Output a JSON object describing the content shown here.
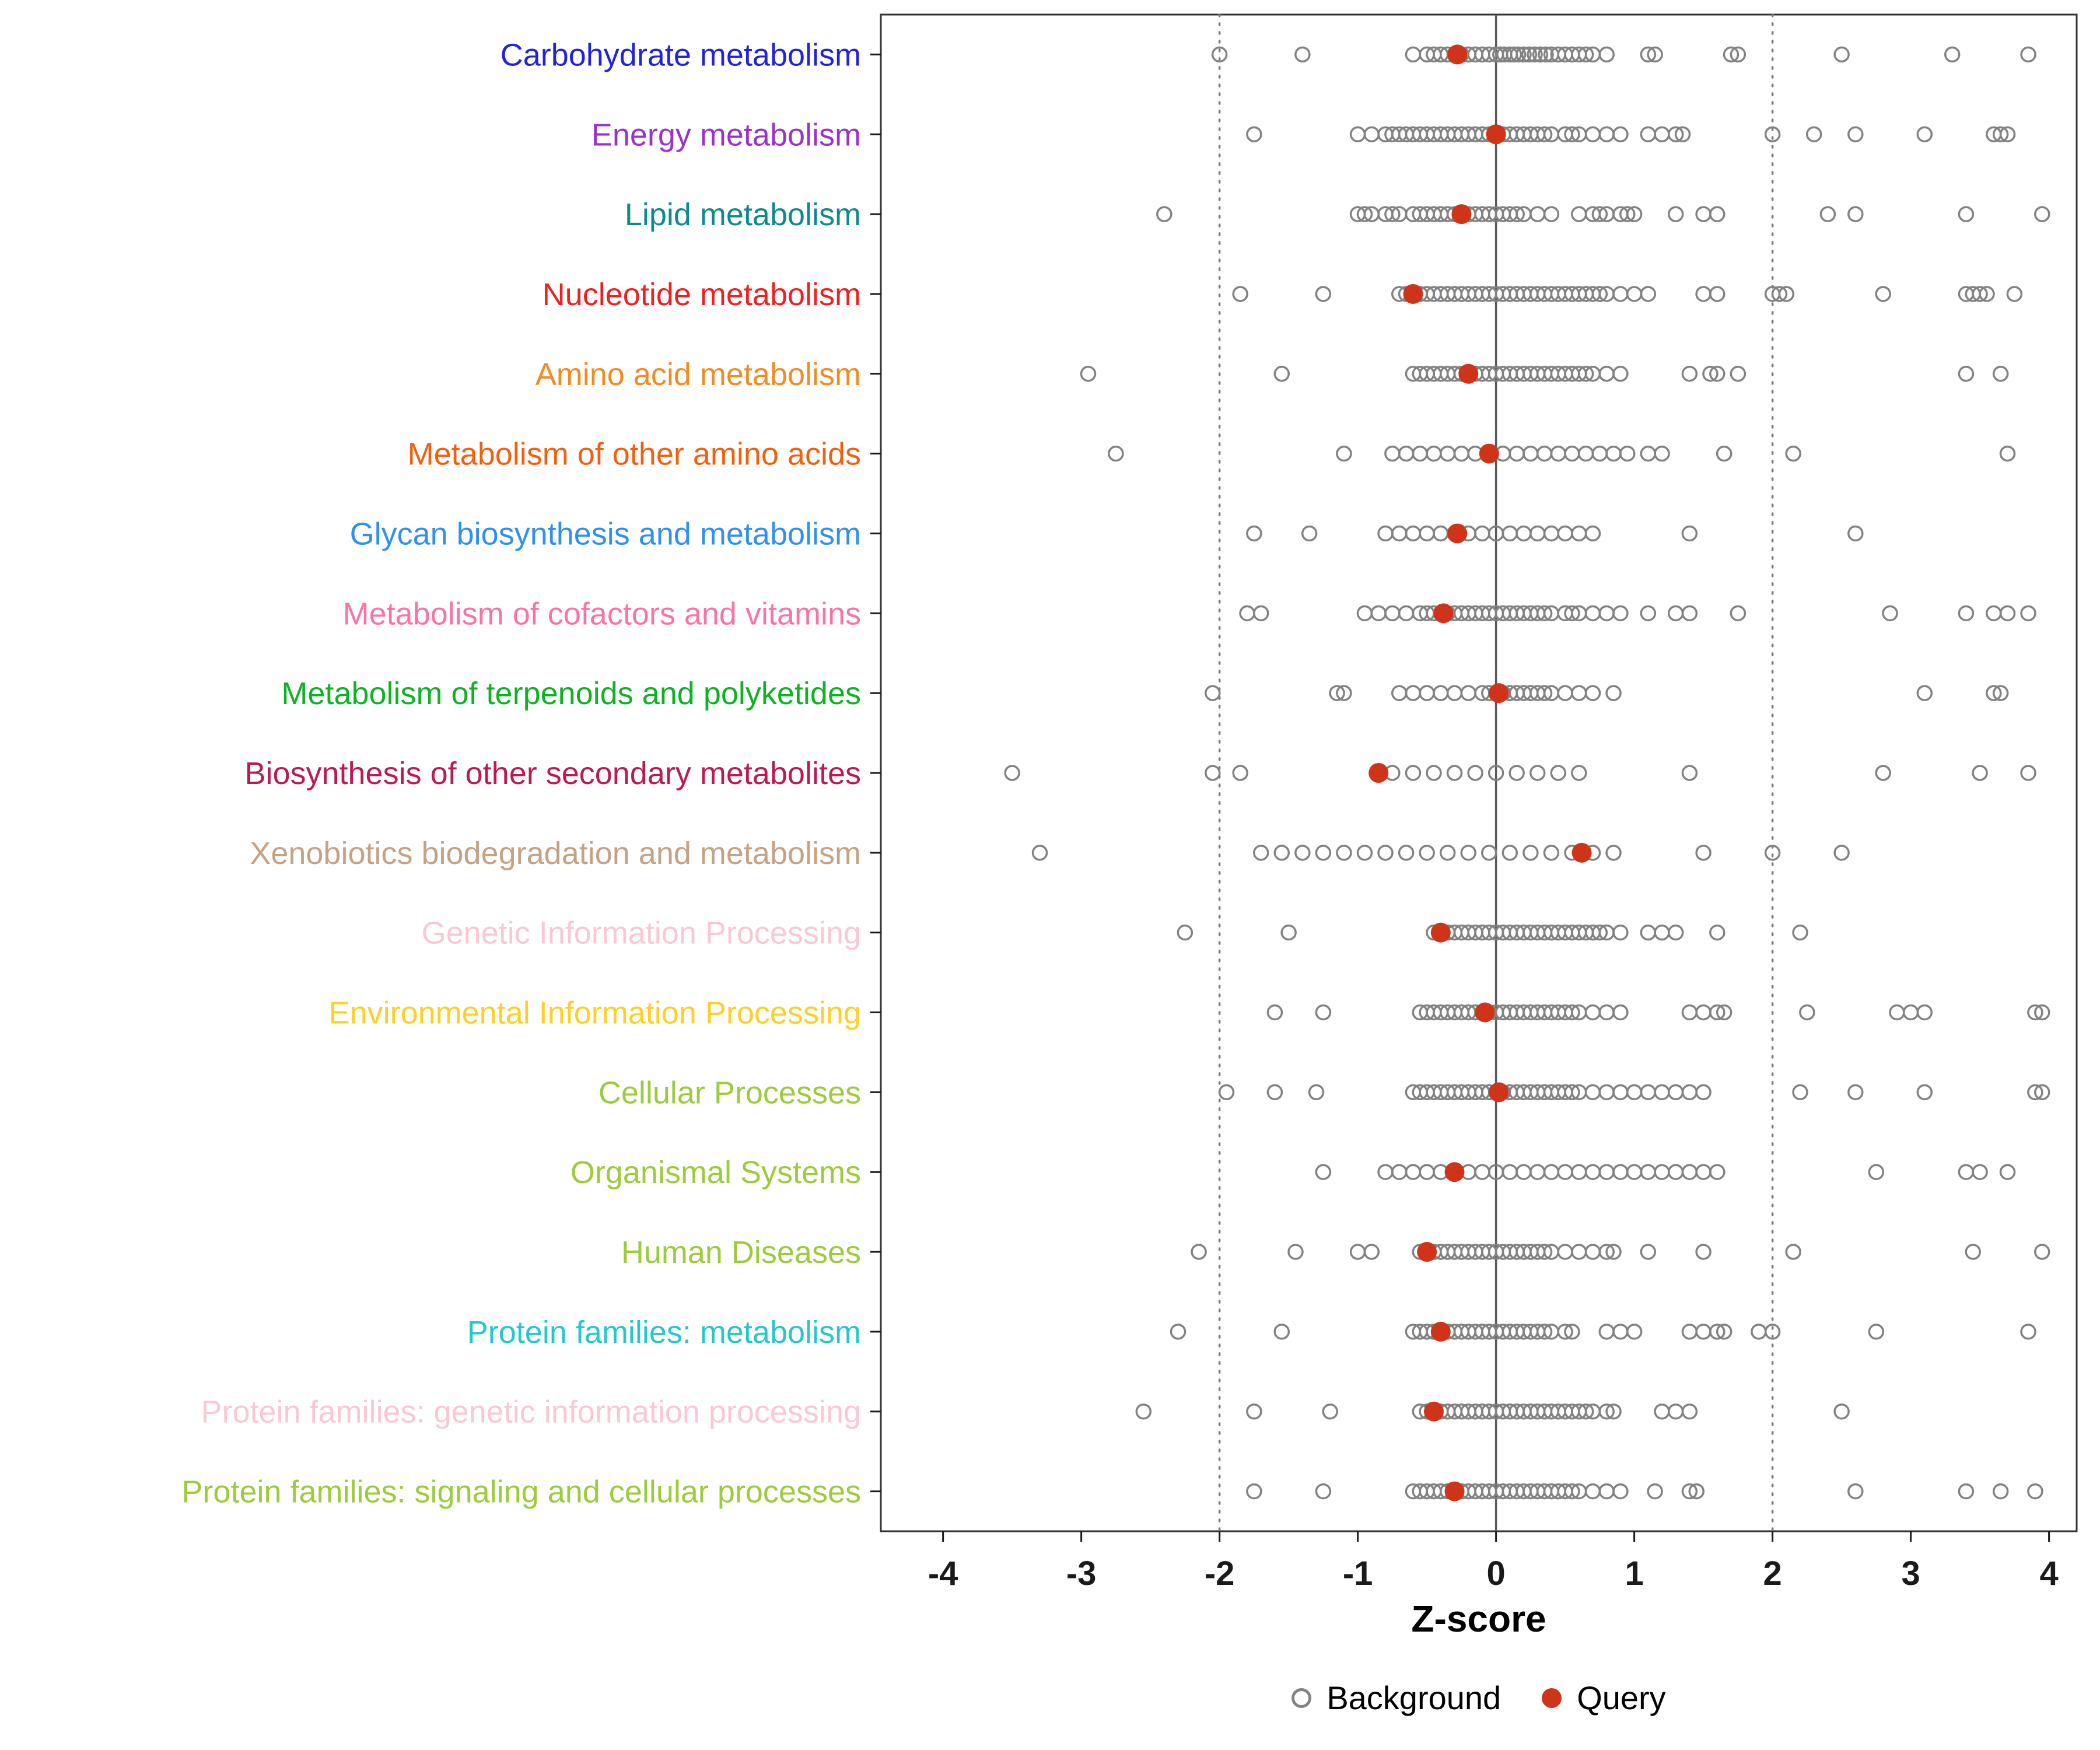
{
  "figure": {
    "background": "#FFFFFF"
  },
  "chart_data": {
    "type": "scatter",
    "title": "",
    "xlabel": "Z-score",
    "ylabel": "",
    "xlim": [
      -4.45,
      4.2
    ],
    "x_ticks": [
      -4,
      -3,
      -2,
      -1,
      0,
      1,
      2,
      3,
      4
    ],
    "grid": false,
    "panel_border_color": "#333333",
    "axis_text_color": "#1A1A1A",
    "zero_line_color": "#5A5A5A",
    "dotted_line_color": "#7A7A7A",
    "background_color": "#828282",
    "query_color": "#D03418",
    "reference_lines": {
      "solid": [
        0
      ],
      "dotted": [
        -2,
        2
      ]
    },
    "legend": {
      "position": "bottom",
      "items": [
        {
          "label": "Background",
          "marker": "open-circle",
          "color": "#828282"
        },
        {
          "label": "Query",
          "marker": "filled-circle",
          "color": "#D03418"
        }
      ]
    },
    "series": [
      {
        "category": "Carbohydrate metabolism",
        "label_color": "#2222DD",
        "query": -0.28,
        "background": [
          -2.0,
          -1.4,
          -0.6,
          -0.5,
          -0.45,
          -0.4,
          -0.35,
          -0.3,
          -0.25,
          -0.2,
          -0.15,
          -0.1,
          -0.05,
          0.0,
          0.03,
          0.06,
          0.1,
          0.13,
          0.16,
          0.2,
          0.24,
          0.28,
          0.32,
          0.36,
          0.4,
          0.45,
          0.5,
          0.55,
          0.6,
          0.65,
          0.7,
          0.8,
          1.1,
          1.15,
          1.7,
          1.75,
          2.5,
          3.3,
          3.85
        ]
      },
      {
        "category": "Energy metabolism",
        "label_color": "#9A32CD",
        "query": 0.0,
        "background": [
          -1.75,
          -1.0,
          -0.9,
          -0.8,
          -0.75,
          -0.7,
          -0.65,
          -0.6,
          -0.55,
          -0.5,
          -0.45,
          -0.4,
          -0.35,
          -0.3,
          -0.25,
          -0.2,
          -0.15,
          -0.1,
          -0.05,
          0.0,
          0.05,
          0.1,
          0.15,
          0.2,
          0.25,
          0.3,
          0.35,
          0.4,
          0.5,
          0.55,
          0.6,
          0.7,
          0.8,
          0.9,
          1.1,
          1.2,
          1.3,
          1.35,
          2.0,
          2.3,
          2.6,
          3.1,
          3.6,
          3.65,
          3.7
        ]
      },
      {
        "category": "Lipid metabolism",
        "label_color": "#0E8A8A",
        "query": -0.25,
        "background": [
          -2.4,
          -1.0,
          -0.95,
          -0.9,
          -0.8,
          -0.75,
          -0.7,
          -0.6,
          -0.55,
          -0.5,
          -0.45,
          -0.4,
          -0.35,
          -0.3,
          -0.25,
          -0.2,
          -0.15,
          -0.1,
          -0.05,
          0.0,
          0.05,
          0.1,
          0.15,
          0.2,
          0.3,
          0.4,
          0.6,
          0.7,
          0.75,
          0.8,
          0.9,
          0.95,
          1.0,
          1.3,
          1.5,
          1.6,
          2.4,
          2.6,
          3.4,
          3.95
        ]
      },
      {
        "category": "Nucleotide metabolism",
        "label_color": "#EE2020",
        "query": -0.6,
        "background": [
          -1.85,
          -1.25,
          -0.7,
          -0.65,
          -0.6,
          -0.55,
          -0.5,
          -0.45,
          -0.4,
          -0.35,
          -0.3,
          -0.25,
          -0.2,
          -0.15,
          -0.1,
          -0.05,
          0.0,
          0.05,
          0.1,
          0.15,
          0.2,
          0.25,
          0.3,
          0.35,
          0.4,
          0.45,
          0.5,
          0.55,
          0.6,
          0.65,
          0.7,
          0.75,
          0.8,
          0.9,
          1.0,
          1.1,
          1.5,
          1.6,
          2.0,
          2.05,
          2.1,
          2.8,
          3.4,
          3.45,
          3.5,
          3.55,
          3.75
        ]
      },
      {
        "category": "Amino acid metabolism",
        "label_color": "#F08C22",
        "query": -0.2,
        "background": [
          -2.95,
          -1.55,
          -0.6,
          -0.55,
          -0.5,
          -0.45,
          -0.4,
          -0.35,
          -0.3,
          -0.25,
          -0.2,
          -0.15,
          -0.1,
          -0.05,
          0.0,
          0.05,
          0.1,
          0.15,
          0.2,
          0.25,
          0.3,
          0.35,
          0.4,
          0.45,
          0.5,
          0.55,
          0.6,
          0.65,
          0.7,
          0.8,
          0.9,
          1.4,
          1.55,
          1.6,
          1.75,
          3.4,
          3.65
        ]
      },
      {
        "category": "Metabolism of other amino acids",
        "label_color": "#F2600E",
        "query": -0.05,
        "background": [
          -2.75,
          -1.1,
          -0.75,
          -0.65,
          -0.55,
          -0.45,
          -0.35,
          -0.25,
          -0.15,
          -0.05,
          0.05,
          0.15,
          0.25,
          0.35,
          0.45,
          0.55,
          0.65,
          0.75,
          0.85,
          0.95,
          1.1,
          1.2,
          1.65,
          2.15,
          3.7
        ]
      },
      {
        "category": "Glycan biosynthesis and metabolism",
        "label_color": "#3090F0",
        "query": -0.28,
        "background": [
          -1.75,
          -1.35,
          -0.8,
          -0.7,
          -0.6,
          -0.5,
          -0.4,
          -0.3,
          -0.2,
          -0.1,
          0.0,
          0.1,
          0.2,
          0.3,
          0.4,
          0.5,
          0.6,
          0.7,
          1.4,
          2.6
        ]
      },
      {
        "category": "Metabolism of cofactors and vitamins",
        "label_color": "#F973A8",
        "query": -0.38,
        "background": [
          -1.8,
          -1.7,
          -0.95,
          -0.85,
          -0.75,
          -0.65,
          -0.55,
          -0.5,
          -0.45,
          -0.4,
          -0.35,
          -0.3,
          -0.25,
          -0.2,
          -0.15,
          -0.1,
          -0.05,
          0.0,
          0.05,
          0.1,
          0.15,
          0.2,
          0.25,
          0.3,
          0.35,
          0.4,
          0.5,
          0.55,
          0.6,
          0.7,
          0.8,
          0.9,
          1.1,
          1.3,
          1.4,
          1.75,
          2.85,
          3.4,
          3.6,
          3.7,
          3.85
        ]
      },
      {
        "category": "Metabolism of terpenoids and polyketides",
        "label_color": "#0DB324",
        "query": 0.02,
        "background": [
          -2.05,
          -1.15,
          -1.1,
          -0.7,
          -0.6,
          -0.5,
          -0.4,
          -0.3,
          -0.2,
          -0.1,
          -0.05,
          0.0,
          0.05,
          0.1,
          0.15,
          0.2,
          0.25,
          0.3,
          0.35,
          0.4,
          0.5,
          0.6,
          0.7,
          0.85,
          3.1,
          3.6,
          3.65
        ]
      },
      {
        "category": "Biosynthesis of other secondary metabolites",
        "label_color": "#BB1A52",
        "query": -0.85,
        "background": [
          -3.5,
          -2.05,
          -1.85,
          -0.75,
          -0.6,
          -0.45,
          -0.3,
          -0.15,
          0.0,
          0.15,
          0.3,
          0.45,
          0.6,
          1.4,
          2.8,
          3.5,
          3.85
        ]
      },
      {
        "category": "Xenobiotics biodegradation and metabolism",
        "label_color": "#C5A284",
        "query": 0.62,
        "background": [
          -3.3,
          -1.7,
          -1.55,
          -1.4,
          -1.25,
          -1.1,
          -0.95,
          -0.8,
          -0.65,
          -0.5,
          -0.35,
          -0.2,
          -0.05,
          0.1,
          0.25,
          0.4,
          0.55,
          0.7,
          0.85,
          1.5,
          2.0,
          2.5
        ]
      },
      {
        "category": "Genetic Information Processing",
        "label_color": "#F9C8D2",
        "query": -0.4,
        "background": [
          -2.25,
          -1.5,
          -0.45,
          -0.4,
          -0.35,
          -0.3,
          -0.25,
          -0.2,
          -0.15,
          -0.1,
          -0.05,
          0.0,
          0.05,
          0.1,
          0.15,
          0.2,
          0.25,
          0.3,
          0.35,
          0.4,
          0.45,
          0.5,
          0.55,
          0.6,
          0.65,
          0.7,
          0.75,
          0.8,
          0.9,
          1.1,
          1.2,
          1.3,
          1.6,
          2.2
        ]
      },
      {
        "category": "Environmental Information Processing",
        "label_color": "#FFD024",
        "query": -0.08,
        "background": [
          -1.6,
          -1.25,
          -0.55,
          -0.5,
          -0.45,
          -0.4,
          -0.35,
          -0.3,
          -0.25,
          -0.2,
          -0.15,
          -0.1,
          -0.05,
          0.0,
          0.05,
          0.1,
          0.15,
          0.2,
          0.25,
          0.3,
          0.35,
          0.4,
          0.45,
          0.5,
          0.55,
          0.6,
          0.7,
          0.8,
          0.9,
          1.4,
          1.5,
          1.6,
          1.65,
          2.25,
          2.9,
          3.0,
          3.1,
          3.9,
          3.95
        ]
      },
      {
        "category": "Cellular Processes",
        "label_color": "#9CCB3B",
        "query": 0.02,
        "background": [
          -1.95,
          -1.6,
          -1.3,
          -0.6,
          -0.55,
          -0.5,
          -0.45,
          -0.4,
          -0.35,
          -0.3,
          -0.25,
          -0.2,
          -0.15,
          -0.1,
          -0.05,
          0.0,
          0.05,
          0.1,
          0.15,
          0.2,
          0.25,
          0.3,
          0.35,
          0.4,
          0.45,
          0.5,
          0.55,
          0.6,
          0.7,
          0.8,
          0.9,
          1.0,
          1.1,
          1.2,
          1.3,
          1.4,
          1.5,
          2.2,
          2.6,
          3.1,
          3.9,
          3.95
        ]
      },
      {
        "category": "Organismal Systems",
        "label_color": "#9CCB3B",
        "query": -0.3,
        "background": [
          -1.25,
          -0.8,
          -0.7,
          -0.6,
          -0.5,
          -0.4,
          -0.3,
          -0.2,
          -0.1,
          0.0,
          0.1,
          0.2,
          0.3,
          0.4,
          0.5,
          0.6,
          0.7,
          0.8,
          0.9,
          1.0,
          1.1,
          1.2,
          1.3,
          1.4,
          1.5,
          1.6,
          2.75,
          3.4,
          3.5,
          3.7
        ]
      },
      {
        "category": "Human Diseases",
        "label_color": "#9CCB3B",
        "query": -0.5,
        "background": [
          -2.15,
          -1.45,
          -1.0,
          -0.9,
          -0.55,
          -0.5,
          -0.45,
          -0.4,
          -0.35,
          -0.3,
          -0.25,
          -0.2,
          -0.15,
          -0.1,
          -0.05,
          0.0,
          0.05,
          0.1,
          0.15,
          0.2,
          0.25,
          0.3,
          0.35,
          0.4,
          0.5,
          0.6,
          0.7,
          0.8,
          0.85,
          1.1,
          1.5,
          2.15,
          3.45,
          3.95
        ]
      },
      {
        "category": "Protein families: metabolism",
        "label_color": "#24C8C8",
        "query": -0.4,
        "background": [
          -2.3,
          -1.55,
          -0.6,
          -0.55,
          -0.5,
          -0.45,
          -0.4,
          -0.35,
          -0.3,
          -0.25,
          -0.2,
          -0.15,
          -0.1,
          -0.05,
          0.0,
          0.05,
          0.1,
          0.15,
          0.2,
          0.25,
          0.3,
          0.35,
          0.4,
          0.5,
          0.55,
          0.8,
          0.9,
          1.0,
          1.4,
          1.5,
          1.6,
          1.65,
          1.9,
          2.0,
          2.75,
          3.85
        ]
      },
      {
        "category": "Protein families: genetic information processing",
        "label_color": "#F9C8D2",
        "query": -0.45,
        "background": [
          -2.55,
          -1.75,
          -1.2,
          -0.55,
          -0.5,
          -0.45,
          -0.4,
          -0.35,
          -0.3,
          -0.25,
          -0.2,
          -0.15,
          -0.1,
          -0.05,
          0.0,
          0.05,
          0.1,
          0.15,
          0.2,
          0.25,
          0.3,
          0.35,
          0.4,
          0.45,
          0.5,
          0.55,
          0.6,
          0.65,
          0.7,
          0.8,
          0.85,
          1.2,
          1.3,
          1.4,
          2.5
        ]
      },
      {
        "category": "Protein families: signaling and cellular processes",
        "label_color": "#9CCB3B",
        "query": -0.3,
        "background": [
          -1.75,
          -1.25,
          -0.6,
          -0.55,
          -0.5,
          -0.45,
          -0.4,
          -0.35,
          -0.3,
          -0.25,
          -0.2,
          -0.15,
          -0.1,
          -0.05,
          0.0,
          0.05,
          0.1,
          0.15,
          0.2,
          0.25,
          0.3,
          0.35,
          0.4,
          0.45,
          0.5,
          0.55,
          0.6,
          0.7,
          0.8,
          0.9,
          1.15,
          1.4,
          1.45,
          2.6,
          3.4,
          3.65,
          3.9
        ]
      }
    ]
  }
}
